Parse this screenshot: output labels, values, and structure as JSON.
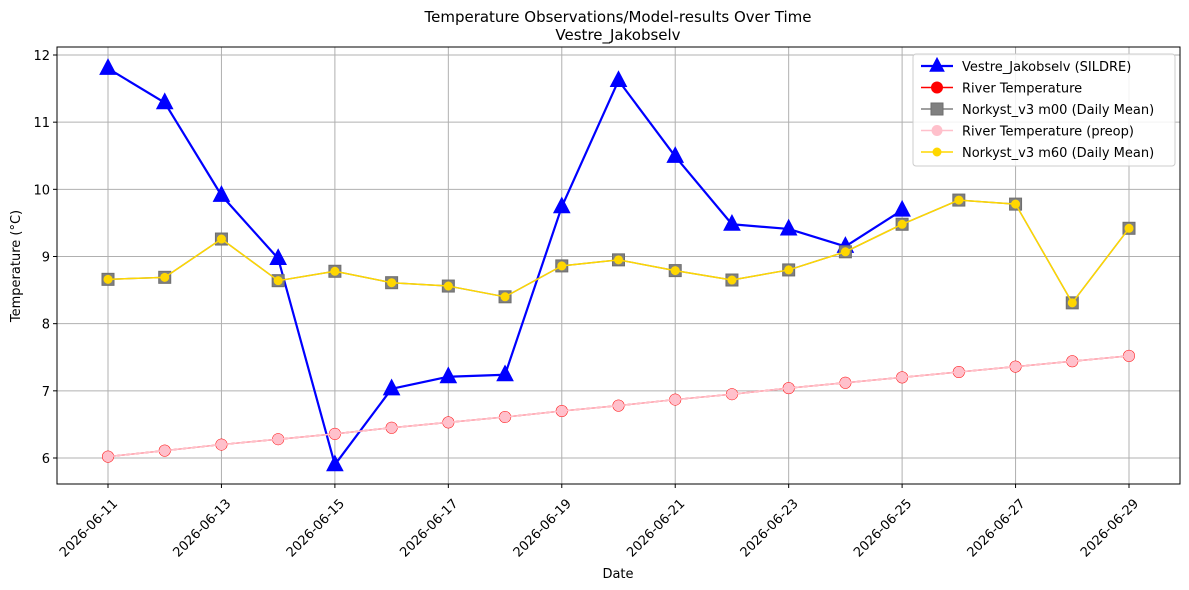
{
  "chart_data": {
    "type": "line",
    "title": "Temperature Observations/Model-results Over Time",
    "subtitle": "Vestre_Jakobselv",
    "xlabel": "Date",
    "ylabel": "Temperature (°C)",
    "ylim": [
      5.62,
      12.1
    ],
    "xlim": [
      "2026-06-10",
      "2026-06-29"
    ],
    "yticks": [
      6,
      7,
      8,
      9,
      10,
      11,
      12
    ],
    "xticks": [
      "2026-06-11",
      "2026-06-13",
      "2026-06-15",
      "2026-06-17",
      "2026-06-19",
      "2026-06-21",
      "2026-06-23",
      "2026-06-25",
      "2026-06-27",
      "2026-06-29"
    ],
    "grid": true,
    "legend_position": "top-right",
    "series": [
      {
        "name": "Vestre_Jakobselv (SILDRE)",
        "color": "#0000ff",
        "marker": "triangle",
        "x": [
          "2026-06-11",
          "2026-06-12",
          "2026-06-13",
          "2026-06-14",
          "2026-06-15",
          "2026-06-16",
          "2026-06-17",
          "2026-06-18",
          "2026-06-19",
          "2026-06-20",
          "2026-06-21",
          "2026-06-22",
          "2026-06-23",
          "2026-06-24",
          "2026-06-25"
        ],
        "values": [
          11.8,
          11.29,
          9.91,
          8.97,
          5.9,
          7.03,
          7.21,
          7.24,
          9.74,
          11.62,
          10.49,
          9.48,
          9.41,
          9.15,
          9.69
        ]
      },
      {
        "name": "River Temperature",
        "color": "#ff0000",
        "marker": "circle",
        "x": [
          "2026-06-11",
          "2026-06-12",
          "2026-06-13",
          "2026-06-14",
          "2026-06-15",
          "2026-06-16",
          "2026-06-17",
          "2026-06-18",
          "2026-06-19",
          "2026-06-20",
          "2026-06-21",
          "2026-06-22",
          "2026-06-23",
          "2026-06-24",
          "2026-06-25",
          "2026-06-26",
          "2026-06-27",
          "2026-06-28",
          "2026-06-29"
        ],
        "values": [
          6.02,
          6.11,
          6.2,
          6.28,
          6.36,
          6.45,
          6.53,
          6.61,
          6.7,
          6.78,
          6.87,
          6.95,
          7.04,
          7.12,
          7.2,
          7.28,
          7.36,
          7.44,
          7.52
        ]
      },
      {
        "name": "Norkyst_v3 m00 (Daily Mean)",
        "color": "#808080",
        "marker": "square",
        "x": [
          "2026-06-11",
          "2026-06-12",
          "2026-06-13",
          "2026-06-14",
          "2026-06-15",
          "2026-06-16",
          "2026-06-17",
          "2026-06-18",
          "2026-06-19",
          "2026-06-20",
          "2026-06-21",
          "2026-06-22",
          "2026-06-23",
          "2026-06-24",
          "2026-06-25",
          "2026-06-26",
          "2026-06-27",
          "2026-06-28",
          "2026-06-29"
        ],
        "values": [
          8.66,
          8.69,
          9.26,
          8.64,
          8.78,
          8.61,
          8.56,
          8.4,
          8.86,
          8.95,
          8.79,
          8.65,
          8.8,
          9.07,
          9.48,
          9.84,
          9.78,
          8.31,
          9.42
        ]
      },
      {
        "name": "River Temperature (preop)",
        "color": "#ffc0cb",
        "marker": "circle",
        "x": [
          "2026-06-11",
          "2026-06-12",
          "2026-06-13",
          "2026-06-14",
          "2026-06-15",
          "2026-06-16",
          "2026-06-17",
          "2026-06-18",
          "2026-06-19",
          "2026-06-20",
          "2026-06-21",
          "2026-06-22",
          "2026-06-23",
          "2026-06-24",
          "2026-06-25",
          "2026-06-26",
          "2026-06-27",
          "2026-06-28",
          "2026-06-29"
        ],
        "values": [
          6.02,
          6.11,
          6.2,
          6.28,
          6.36,
          6.45,
          6.53,
          6.61,
          6.7,
          6.78,
          6.87,
          6.95,
          7.04,
          7.12,
          7.2,
          7.28,
          7.36,
          7.44,
          7.52
        ]
      },
      {
        "name": "Norkyst_v3 m60 (Daily Mean)",
        "color": "#ffd700",
        "marker": "circle",
        "x": [
          "2026-06-11",
          "2026-06-12",
          "2026-06-13",
          "2026-06-14",
          "2026-06-15",
          "2026-06-16",
          "2026-06-17",
          "2026-06-18",
          "2026-06-19",
          "2026-06-20",
          "2026-06-21",
          "2026-06-22",
          "2026-06-23",
          "2026-06-24",
          "2026-06-25",
          "2026-06-26",
          "2026-06-27",
          "2026-06-28",
          "2026-06-29"
        ],
        "values": [
          8.66,
          8.69,
          9.26,
          8.64,
          8.78,
          8.61,
          8.56,
          8.4,
          8.86,
          8.95,
          8.79,
          8.65,
          8.8,
          9.07,
          9.48,
          9.84,
          9.78,
          8.31,
          9.42
        ]
      }
    ]
  }
}
